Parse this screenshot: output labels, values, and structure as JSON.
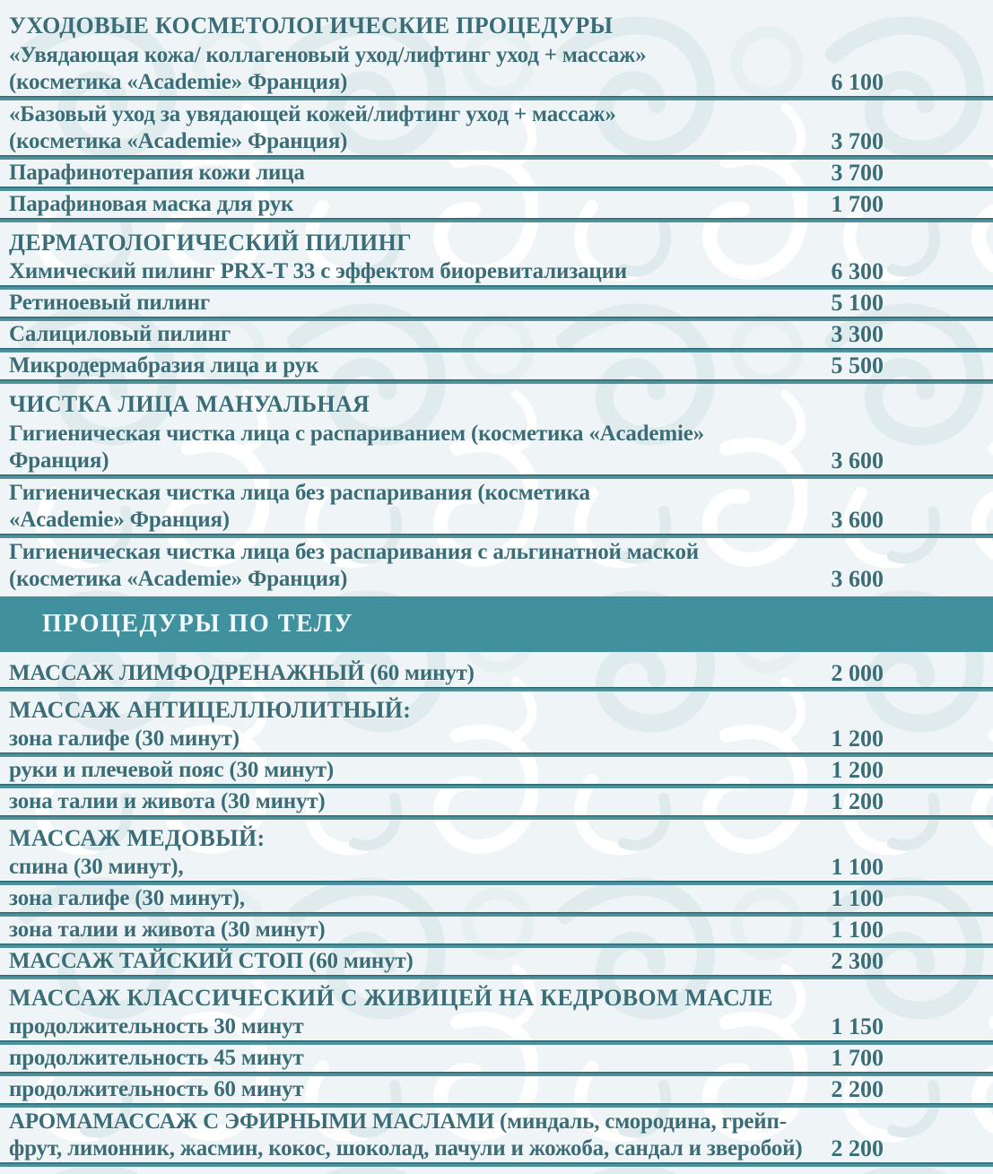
{
  "document": {
    "kind": "price-list",
    "language": "ru",
    "colors": {
      "background": "#eff5f6",
      "text": "#3a6d78",
      "divider_dark": "#2c6973",
      "divider_light": "#4f929e",
      "banner_background": "#40909e",
      "banner_text": "#f3f9fa",
      "pattern_light": "#ffffff",
      "pattern_dark": "#e0ebed"
    }
  },
  "price_list": {
    "rows": [
      {
        "type": "section",
        "text": "УХОДОВЫЕ КОСМЕТОЛОГИЧЕСКИЕ ПРОЦЕДУРЫ",
        "divider": false
      },
      {
        "type": "item",
        "lines": [
          "«Увядающая кожа/ коллагеновый уход/лифтинг уход + массаж»",
          "(косметика «Academie» Франция)"
        ],
        "price": "6 100",
        "divider": true
      },
      {
        "type": "item",
        "lines": [
          "«Базовый уход за увядающей кожей/лифтинг уход + массаж»",
          "(косметика «Academie» Франция)"
        ],
        "price": "3 700",
        "divider": true
      },
      {
        "type": "item",
        "lines": [
          "Парафинотерапия кожи лица"
        ],
        "price": "3 700",
        "divider": true
      },
      {
        "type": "item",
        "lines": [
          "Парафиновая маска для рук"
        ],
        "price": "1 700",
        "divider": true
      },
      {
        "type": "section",
        "text": "ДЕРМАТОЛОГИЧЕСКИЙ ПИЛИНГ",
        "divider": false
      },
      {
        "type": "item",
        "lines": [
          "Химический пилинг PRX-T 33 с эффектом биоревитализации"
        ],
        "price": "6 300",
        "divider": true
      },
      {
        "type": "item",
        "lines": [
          "Ретиноевый пилинг"
        ],
        "price": "5 100",
        "divider": true
      },
      {
        "type": "item",
        "lines": [
          "Салициловый пилинг"
        ],
        "price": "3 300",
        "divider": true
      },
      {
        "type": "item",
        "lines": [
          "Микродермабразия лица и рук"
        ],
        "price": "5 500",
        "divider": true
      },
      {
        "type": "section",
        "text": "ЧИСТКА ЛИЦА МАНУАЛЬНАЯ",
        "divider": false
      },
      {
        "type": "item",
        "lines": [
          "Гигиеническая чистка лица с распариванием (косметика «Academie»",
          "Франция)"
        ],
        "price": "3 600",
        "divider": true
      },
      {
        "type": "item",
        "lines": [
          "Гигиеническая чистка лица без распаривания (косметика",
          "«Academie» Франция)"
        ],
        "price": "3 600",
        "divider": true
      },
      {
        "type": "item",
        "lines": [
          "Гигиеническая чистка лица без распаривания с альгинатной маской",
          "(косметика «Academie» Франция)"
        ],
        "price": "3 600",
        "divider": false
      },
      {
        "type": "banner",
        "text": "ПРОЦЕДУРЫ ПО ТЕЛУ"
      },
      {
        "type": "item",
        "lines": [
          "МАССАЖ ЛИМФОДРЕНАЖНЫЙ (60 минут)"
        ],
        "price": "2 000",
        "divider": true
      },
      {
        "type": "subheader",
        "text": "МАССАЖ АНТИЦЕЛЛЮЛИТНЫЙ:",
        "divider": false
      },
      {
        "type": "item",
        "lines": [
          "зона галифе (30 минут)"
        ],
        "price": "1 200",
        "divider": true
      },
      {
        "type": "item",
        "lines": [
          "руки и плечевой пояс (30 минут)"
        ],
        "price": "1 200",
        "divider": true
      },
      {
        "type": "item",
        "lines": [
          "зона талии и живота (30 минут)"
        ],
        "price": "1 200",
        "divider": true
      },
      {
        "type": "subheader",
        "text": "МАССАЖ МЕДОВЫЙ:",
        "divider": false
      },
      {
        "type": "item",
        "lines": [
          "спина (30 минут),"
        ],
        "price": "1 100",
        "divider": true
      },
      {
        "type": "item",
        "lines": [
          "зона галифе (30 минут),"
        ],
        "price": "1 100",
        "divider": true
      },
      {
        "type": "item",
        "lines": [
          "зона талии и живота (30 минут)"
        ],
        "price": "1 100",
        "divider": true
      },
      {
        "type": "item",
        "lines": [
          "МАССАЖ ТАЙСКИЙ СТОП (60 минут)"
        ],
        "price": "2 300",
        "divider": true
      },
      {
        "type": "subheader",
        "text": "МАССАЖ КЛАССИЧЕСКИЙ С ЖИВИЦЕЙ НА КЕДРОВОМ МАСЛЕ",
        "divider": false
      },
      {
        "type": "item",
        "lines": [
          "продолжительность 30 минут"
        ],
        "price": "1 150",
        "divider": true
      },
      {
        "type": "item",
        "lines": [
          "продолжительность 45 минут"
        ],
        "price": "1 700",
        "divider": true
      },
      {
        "type": "item",
        "lines": [
          "продолжительность 60 минут"
        ],
        "price": "2 200",
        "divider": true
      },
      {
        "type": "item",
        "lines": [
          "АРОМАМАССАЖ С ЭФИРНЫМИ МАСЛАМИ (миндаль, смородина, грейп-",
          "фрут, лимонник, жасмин, кокос, шоколад, пачули и жожоба, сандал и зверобой)"
        ],
        "price": "2 200",
        "divider": true
      }
    ]
  }
}
